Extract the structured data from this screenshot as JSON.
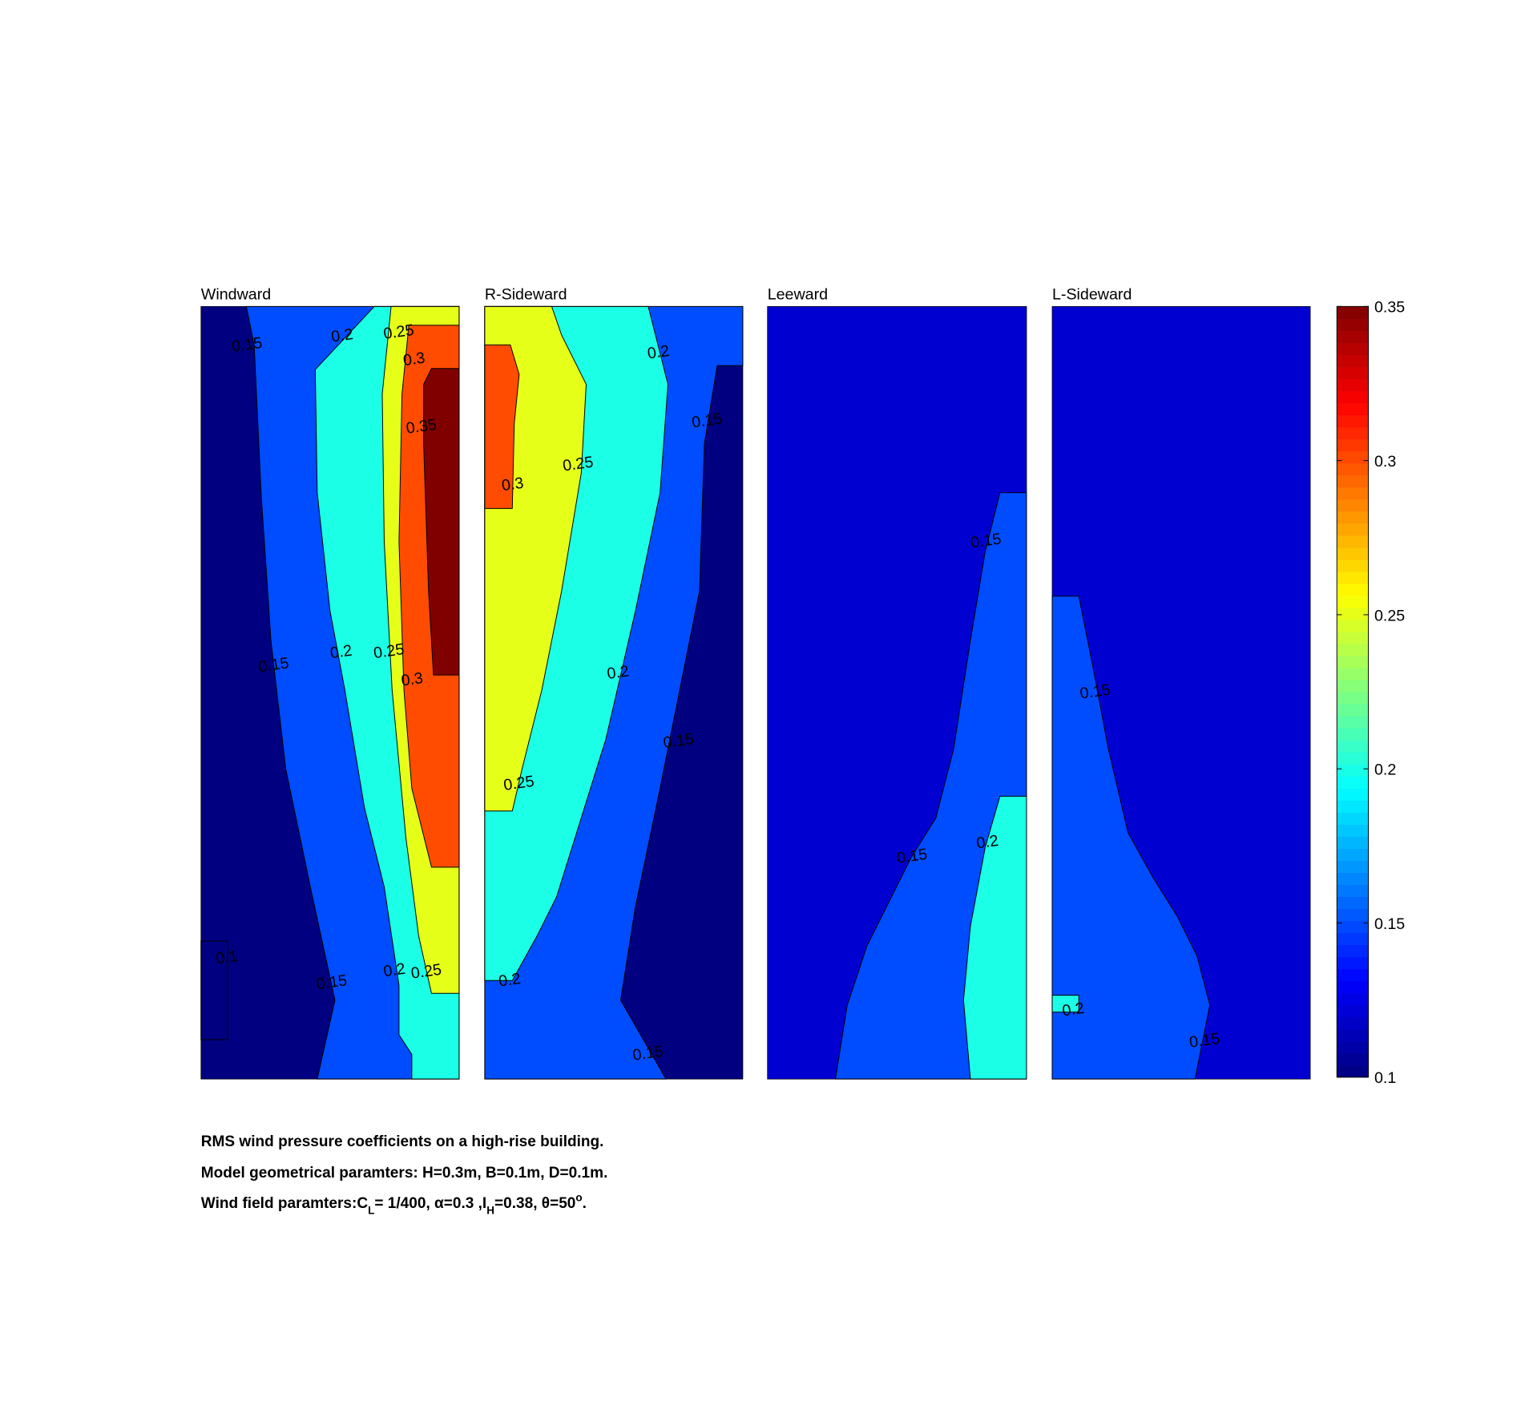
{
  "chart_data": [
    {
      "type": "contour",
      "title": "Windward",
      "regions": [
        0.1,
        0.15,
        0.2,
        0.25,
        0.3,
        0.35
      ],
      "contour_labels": [
        0.15,
        0.2,
        0.25,
        0.3,
        0.35,
        0.15,
        0.2,
        0.25,
        0.3,
        0.1,
        0.15,
        0.2,
        0.25
      ]
    },
    {
      "type": "contour",
      "title": "R-Sideward",
      "regions": [
        0.1,
        0.15,
        0.2,
        0.25,
        0.3
      ],
      "contour_labels": [
        0.2,
        0.15,
        0.25,
        0.3,
        0.2,
        0.15,
        0.25,
        0.2,
        0.15
      ]
    },
    {
      "type": "contour",
      "title": "Leeward",
      "regions": [
        0.12,
        0.15,
        0.2
      ],
      "contour_labels": [
        0.15,
        0.15,
        0.2
      ]
    },
    {
      "type": "contour",
      "title": "L-Sideward",
      "regions": [
        0.12,
        0.15,
        0.2
      ],
      "contour_labels": [
        0.15,
        0.2,
        0.15
      ]
    },
    {
      "type": "colorbar",
      "colormap": "jet",
      "clim": [
        0.1,
        0.35
      ],
      "ticks": [
        0.1,
        0.15,
        0.2,
        0.25,
        0.3,
        0.35
      ]
    }
  ],
  "caption": [
    "RMS wind pressure coefficients on a high-rise building.",
    "Model geometrical paramters: H=0.3m, B=0.1m, D=0.1m.",
    [
      "Wind field paramters:C",
      "L",
      "= 1/400, α=0.3 ,I",
      "H",
      "=0.38, θ=50",
      "o",
      "."
    ]
  ]
}
